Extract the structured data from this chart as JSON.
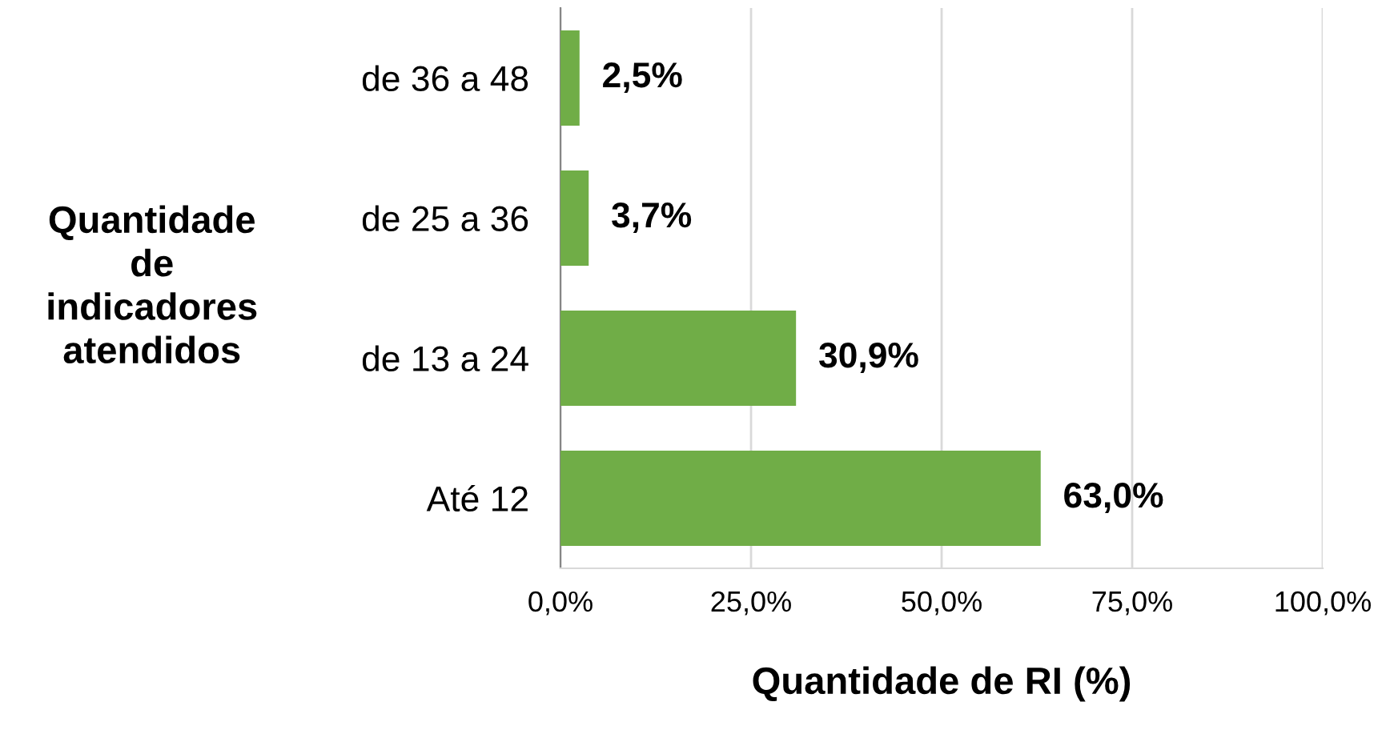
{
  "chart_data": {
    "type": "bar",
    "orientation": "horizontal",
    "categories": [
      "de 36 a 48",
      "de 25 a 36",
      "de 13 a 24",
      "Até 12"
    ],
    "values": [
      2.5,
      3.7,
      30.9,
      63.0
    ],
    "value_labels": [
      "2,5%",
      "3,7%",
      "30,9%",
      "63,0%"
    ],
    "color": "#70ad47",
    "xlim": [
      0,
      100
    ],
    "xticks": [
      {
        "value": 0,
        "label": "0,0%"
      },
      {
        "value": 25,
        "label": "25,0%"
      },
      {
        "value": 50,
        "label": "50,0%"
      },
      {
        "value": 75,
        "label": "75,0%"
      },
      {
        "value": 100,
        "label": "100,0%"
      }
    ],
    "xlabel": "Quantidade de RI (%)",
    "ylabel": "Quantidade\nde\nindicadores\natendidos",
    "grid": "x",
    "legend": false
  }
}
